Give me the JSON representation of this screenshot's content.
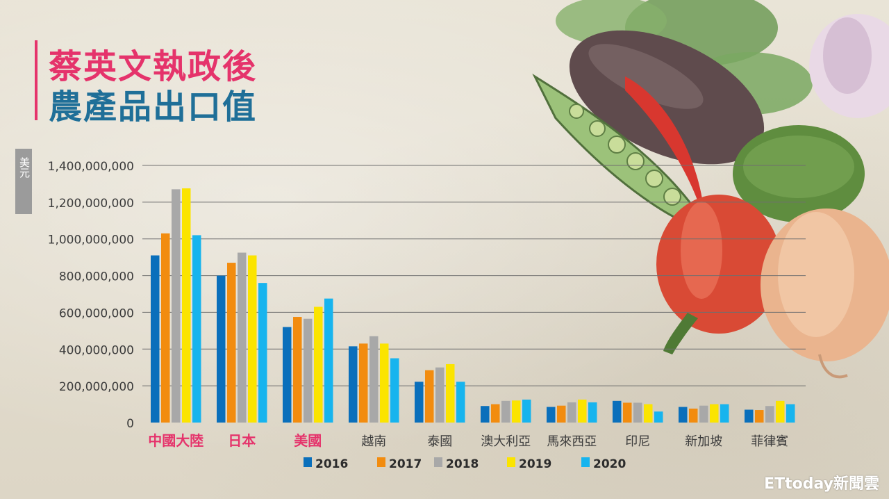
{
  "header": {
    "title_line1": "蔡英文執政後",
    "title_line2": "農產品出口值"
  },
  "unit_label": "美元",
  "watermark": "ETtoday新聞雲",
  "colors": {
    "title1": "#e5336b",
    "title2": "#1f6f98",
    "highlight_category": "#e5336b",
    "gridline": "#6f6f6f"
  },
  "chart_data": {
    "type": "bar",
    "ylabel": "美元",
    "ylim": [
      0,
      1400000000
    ],
    "yticks": [
      {
        "value": 0,
        "label": "0"
      },
      {
        "value": 200000000,
        "label": "200,000,000"
      },
      {
        "value": 400000000,
        "label": "400,000,000"
      },
      {
        "value": 600000000,
        "label": "600,000,000"
      },
      {
        "value": 800000000,
        "label": "800,000,000"
      },
      {
        "value": 1000000000,
        "label": "1,000,000,000"
      },
      {
        "value": 1200000000,
        "label": "1,200,000,000"
      },
      {
        "value": 1400000000,
        "label": "1,400,000,000"
      }
    ],
    "grid": true,
    "legend_position": "bottom",
    "categories": [
      "中國大陸",
      "日本",
      "美國",
      "越南",
      "泰國",
      "澳大利亞",
      "馬來西亞",
      "印尼",
      "新加坡",
      "菲律賓"
    ],
    "highlighted_categories": [
      "中國大陸",
      "日本",
      "美國"
    ],
    "series": [
      {
        "name": "2016",
        "color": "#0a6fbb",
        "values": [
          910000000,
          800000000,
          520000000,
          415000000,
          222000000,
          90000000,
          85000000,
          118000000,
          85000000,
          70000000
        ]
      },
      {
        "name": "2017",
        "color": "#f28c0f",
        "values": [
          1030000000,
          870000000,
          575000000,
          430000000,
          285000000,
          100000000,
          92000000,
          108000000,
          76000000,
          68000000
        ]
      },
      {
        "name": "2018",
        "color": "#a8a8a8",
        "values": [
          1270000000,
          925000000,
          565000000,
          470000000,
          300000000,
          118000000,
          110000000,
          108000000,
          92000000,
          90000000
        ]
      },
      {
        "name": "2019",
        "color": "#fbe400",
        "values": [
          1275000000,
          910000000,
          630000000,
          430000000,
          318000000,
          120000000,
          125000000,
          100000000,
          100000000,
          118000000
        ]
      },
      {
        "name": "2020",
        "color": "#17b4ee",
        "values": [
          1020000000,
          760000000,
          675000000,
          350000000,
          222000000,
          125000000,
          110000000,
          60000000,
          100000000,
          100000000
        ]
      }
    ]
  }
}
